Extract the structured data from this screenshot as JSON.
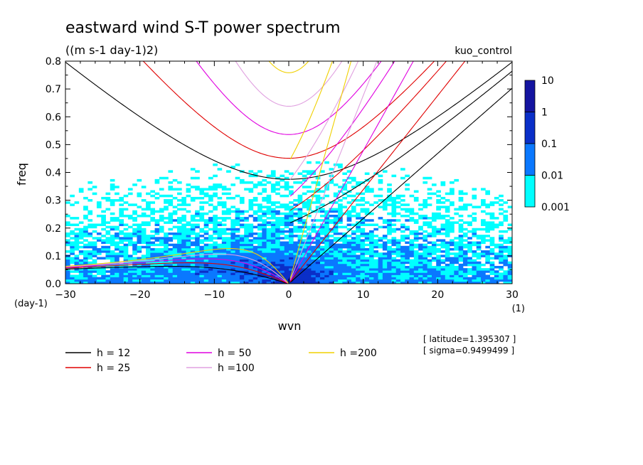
{
  "chart_data": {
    "type": "heatmap",
    "title": "eastward wind S-T power spectrum",
    "subtitle": "((m s-1 day-1)2)",
    "run_label": "kuo_control",
    "xlabel": "wvn",
    "xunit": "(1)",
    "ylabel": "freq",
    "yunit": "(day-1)",
    "xlim": [
      -30,
      30
    ],
    "ylim": [
      0,
      0.8
    ],
    "xticks": [
      -30,
      -20,
      -10,
      0,
      10,
      20,
      30
    ],
    "yticks": [
      0.0,
      0.1,
      0.2,
      0.3,
      0.4,
      0.5,
      0.6,
      0.7,
      0.8
    ],
    "colorbar": {
      "levels": [
        "0.001",
        "0.01",
        "0.1",
        "1",
        "10"
      ],
      "colors": [
        "#00ffff",
        "#0a78ff",
        "#0a2fc8",
        "#1414a0"
      ]
    },
    "curve_colors": {
      "12": "#000000",
      "25": "#e00000",
      "50": "#e000e0",
      "100": "#e0a0e0",
      "200": "#f0d000"
    },
    "legend": [
      {
        "label": "h = 12",
        "color": "#000000"
      },
      {
        "label": "h = 25",
        "color": "#e00000"
      },
      {
        "label": "h = 50",
        "color": "#e000e0"
      },
      {
        "label": "h =100",
        "color": "#e0a0e0"
      },
      {
        "label": "h =200",
        "color": "#f0d000"
      }
    ],
    "info": [
      "[ latitude=1.395307 ]",
      "[ sigma=0.9499499 ]"
    ]
  }
}
